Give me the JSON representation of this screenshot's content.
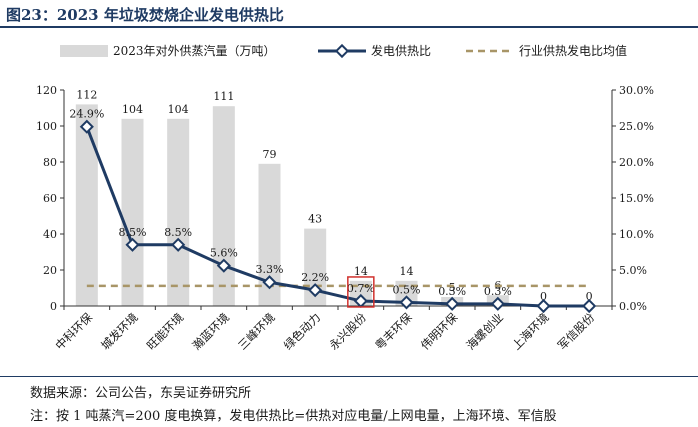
{
  "header": {
    "title": "图23：2023 年垃圾焚烧企业发电供热比"
  },
  "footer": {
    "source": "数据来源：公司公告，东吴证券研究所",
    "note": "注：按 1 吨蒸汽=200 度电换算，发电供热比=供热对应电量/上网电量，上海环境、军信股"
  },
  "chart_data": {
    "type": "bar",
    "categories": [
      "中科环保",
      "城发环境",
      "旺能环境",
      "瀚蓝环境",
      "三峰环境",
      "绿色动力",
      "永兴股份",
      "粤丰环保",
      "伟明环保",
      "海螺创业",
      "上海环境",
      "军信股份"
    ],
    "series": [
      {
        "name": "2023年对外供蒸汽量（万吨）",
        "type": "bar",
        "axis": "left",
        "values": [
          112,
          104,
          104,
          111,
          79,
          43,
          14,
          14,
          5,
          6,
          0,
          0
        ],
        "labels": [
          "112",
          "104",
          "104",
          "111",
          "79",
          "43",
          "14",
          "14",
          "5",
          "6",
          "0",
          "0"
        ],
        "color": "#d9d9d9"
      },
      {
        "name": "发电供热比",
        "type": "line",
        "axis": "right",
        "values": [
          24.9,
          8.5,
          8.5,
          5.6,
          3.3,
          2.2,
          0.7,
          0.5,
          0.3,
          0.3,
          0.0,
          0.0
        ],
        "labels": [
          "24.9%",
          "8.5%",
          "8.5%",
          "5.6%",
          "3.3%",
          "2.2%",
          "0.7%",
          "0.5%",
          "0.3%",
          "0.3%",
          "",
          ""
        ],
        "color": "#1f3b63"
      },
      {
        "name": "行业供热发电比均值",
        "type": "line-dashed",
        "axis": "right",
        "value": 2.8,
        "color": "#a89567"
      }
    ],
    "y_left": {
      "min": 0,
      "max": 120,
      "ticks": [
        "0",
        "20",
        "40",
        "60",
        "80",
        "100",
        "120"
      ]
    },
    "y_right": {
      "min": 0,
      "max": 30,
      "ticks": [
        "0.0%",
        "5.0%",
        "10.0%",
        "15.0%",
        "20.0%",
        "25.0%",
        "30.0%"
      ]
    },
    "highlight_category": "永兴股份",
    "highlight_color": "#d0312d",
    "legend_position": "top",
    "grid": false
  }
}
